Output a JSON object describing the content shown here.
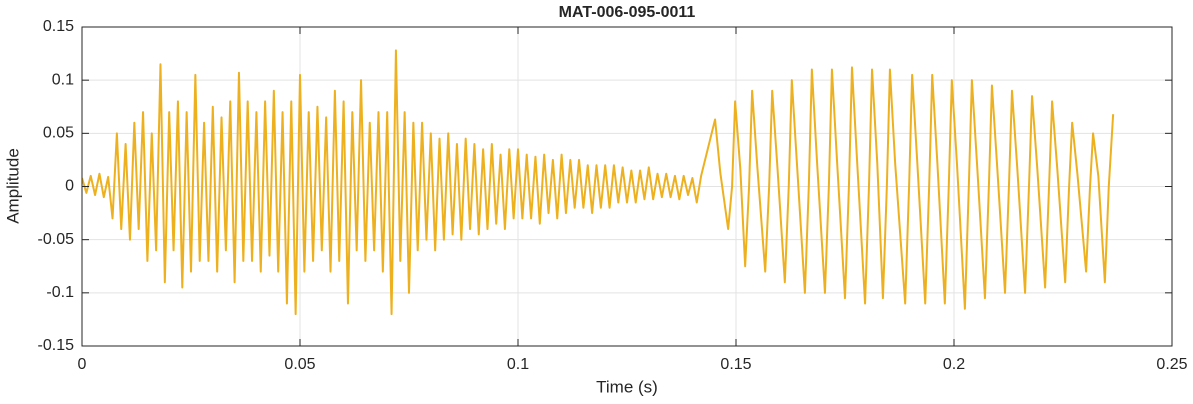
{
  "chart_data": {
    "type": "line",
    "title": "MAT-006-095-0011",
    "x_label": "Time (s)",
    "y_label": "Amplitude",
    "color": "#EDB120",
    "grid": true,
    "xlim": [
      0,
      0.25
    ],
    "xticks": [
      0,
      0.05,
      0.1,
      0.15,
      0.2,
      0.25
    ],
    "ylim": [
      -0.15,
      0.15
    ],
    "yticks": [
      -0.15,
      -0.1,
      -0.05,
      0,
      0.05,
      0.1,
      0.15
    ],
    "x": [
      0,
      0.001,
      0.002,
      0.003,
      0.004,
      0.005,
      0.006,
      0.007,
      0.008,
      0.009,
      0.01,
      0.011,
      0.012,
      0.013,
      0.014,
      0.015,
      0.016,
      0.017,
      0.018,
      0.019,
      0.02,
      0.021,
      0.022,
      0.023,
      0.024,
      0.025,
      0.026,
      0.027,
      0.028,
      0.029,
      0.03,
      0.031,
      0.032,
      0.033,
      0.034,
      0.035,
      0.036,
      0.037,
      0.038,
      0.039,
      0.04,
      0.041,
      0.042,
      0.043,
      0.044,
      0.045,
      0.046,
      0.047,
      0.048,
      0.049,
      0.05,
      0.051,
      0.052,
      0.053,
      0.054,
      0.055,
      0.056,
      0.057,
      0.058,
      0.059,
      0.06,
      0.061,
      0.062,
      0.063,
      0.064,
      0.065,
      0.066,
      0.067,
      0.068,
      0.069,
      0.07,
      0.071,
      0.072,
      0.073,
      0.074,
      0.075,
      0.076,
      0.077,
      0.078,
      0.079,
      0.08,
      0.081,
      0.082,
      0.083,
      0.084,
      0.085,
      0.086,
      0.087,
      0.088,
      0.089,
      0.09,
      0.091,
      0.092,
      0.093,
      0.094,
      0.095,
      0.096,
      0.097,
      0.098,
      0.099,
      0.1,
      0.101,
      0.102,
      0.103,
      0.104,
      0.105,
      0.106,
      0.107,
      0.108,
      0.109,
      0.11,
      0.111,
      0.112,
      0.113,
      0.114,
      0.115,
      0.116,
      0.117,
      0.118,
      0.119,
      0.12,
      0.121,
      0.122,
      0.123,
      0.124,
      0.125,
      0.126,
      0.127,
      0.128,
      0.129,
      0.13,
      0.131,
      0.132,
      0.133,
      0.134,
      0.135,
      0.136,
      0.137,
      0.138,
      0.139,
      0.14,
      0.141,
      0.142,
      0.1452,
      0.1464,
      0.1482,
      0.1491,
      0.1498,
      0.151,
      0.1521,
      0.153,
      0.1537,
      0.1549,
      0.1567,
      0.1576,
      0.1583,
      0.1595,
      0.1612,
      0.1621,
      0.1628,
      0.164,
      0.1658,
      0.1667,
      0.1674,
      0.1686,
      0.1704,
      0.1713,
      0.172,
      0.1732,
      0.175,
      0.1759,
      0.1766,
      0.1778,
      0.1796,
      0.1805,
      0.1812,
      0.1824,
      0.1837,
      0.1846,
      0.1853,
      0.1865,
      0.1888,
      0.1897,
      0.1904,
      0.1916,
      0.1934,
      0.1943,
      0.195,
      0.1962,
      0.1979,
      0.1988,
      0.1995,
      0.2007,
      0.2025,
      0.2034,
      0.2041,
      0.2053,
      0.2071,
      0.208,
      0.2087,
      0.2099,
      0.2117,
      0.2126,
      0.2133,
      0.2145,
      0.2163,
      0.2172,
      0.2179,
      0.2191,
      0.2209,
      0.2218,
      0.2225,
      0.2237,
      0.2255,
      0.2264,
      0.2271,
      0.2283,
      0.2303,
      0.2312,
      0.2319,
      0.2331,
      0.2346,
      0.2355,
      0.2365
    ],
    "values": [
      0.008,
      -0.006,
      0.01,
      -0.008,
      0.012,
      -0.01,
      0.009,
      -0.03,
      0.05,
      -0.04,
      0.04,
      -0.05,
      0.06,
      -0.04,
      0.07,
      -0.07,
      0.05,
      -0.06,
      0.115,
      -0.09,
      0.07,
      -0.06,
      0.08,
      -0.095,
      0.07,
      -0.08,
      0.105,
      -0.07,
      0.06,
      -0.07,
      0.075,
      -0.08,
      0.065,
      -0.06,
      0.08,
      -0.09,
      0.107,
      -0.07,
      0.08,
      -0.07,
      0.07,
      -0.08,
      0.08,
      -0.065,
      0.09,
      -0.08,
      0.07,
      -0.11,
      0.08,
      -0.12,
      0.105,
      -0.08,
      0.07,
      -0.07,
      0.075,
      -0.06,
      0.065,
      -0.08,
      0.09,
      -0.07,
      0.08,
      -0.11,
      0.07,
      -0.06,
      0.1,
      -0.07,
      0.06,
      -0.06,
      0.07,
      -0.08,
      0.07,
      -0.12,
      0.128,
      -0.07,
      0.07,
      -0.1,
      0.06,
      -0.06,
      0.06,
      -0.05,
      0.05,
      -0.06,
      0.045,
      -0.05,
      0.05,
      -0.045,
      0.04,
      -0.05,
      0.045,
      -0.04,
      0.04,
      -0.045,
      0.035,
      -0.04,
      0.04,
      -0.035,
      0.03,
      -0.04,
      0.035,
      -0.03,
      0.035,
      -0.03,
      0.03,
      -0.03,
      0.028,
      -0.035,
      0.03,
      -0.025,
      0.025,
      -0.03,
      0.03,
      -0.025,
      0.025,
      -0.02,
      0.025,
      -0.02,
      0.02,
      -0.025,
      0.02,
      -0.02,
      0.02,
      -0.02,
      0.02,
      -0.015,
      0.018,
      -0.015,
      0.015,
      -0.015,
      0.015,
      -0.012,
      0.018,
      -0.012,
      0.012,
      -0.01,
      0.012,
      -0.01,
      0.01,
      -0.012,
      0.01,
      -0.008,
      0.008,
      -0.015,
      0.01,
      0.063,
      0.013,
      -0.04,
      0,
      0.08,
      0.016,
      -0.075,
      0,
      0.09,
      0.018,
      -0.08,
      0,
      0.09,
      0.018,
      -0.09,
      0,
      0.1,
      0.02,
      -0.1,
      0,
      0.11,
      0.022,
      -0.1,
      0,
      0.11,
      0.022,
      -0.105,
      0,
      0.112,
      0.022,
      -0.11,
      0,
      0.11,
      0.022,
      -0.105,
      0,
      0.11,
      0.022,
      -0.11,
      0,
      0.105,
      0.021,
      -0.11,
      0,
      0.105,
      0.021,
      -0.11,
      0,
      0.1,
      0.02,
      -0.115,
      0,
      0.1,
      0.02,
      -0.105,
      0,
      0.095,
      0.019,
      -0.1,
      0,
      0.09,
      0.018,
      -0.1,
      0,
      0.085,
      0.017,
      -0.095,
      0,
      0.08,
      0.016,
      -0.09,
      0,
      0.06,
      0.012,
      -0.08,
      0,
      0.05,
      0.01,
      -0.09,
      0,
      0.068
    ]
  }
}
